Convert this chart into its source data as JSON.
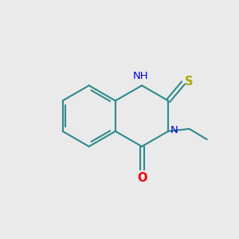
{
  "background_color": "#EAEAEA",
  "bond_color": "#2E8B8B",
  "bond_width": 1.5,
  "atom_colors": {
    "N": "#0000EE",
    "O": "#EE0000",
    "S": "#AAAA00",
    "H": "#888888"
  },
  "font_size": 9.5,
  "figsize": [
    3.0,
    3.0
  ],
  "dpi": 100
}
